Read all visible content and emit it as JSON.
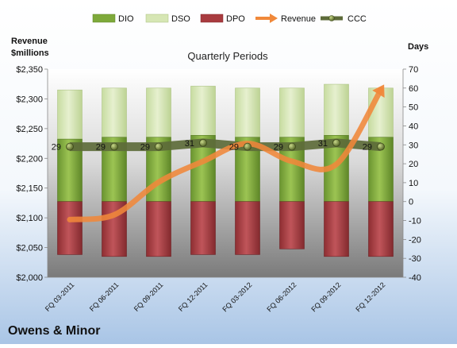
{
  "chart_data": {
    "type": "bar",
    "title": "Quarterly Periods",
    "company": "Owens & Minor",
    "left_axis_title_line1": "Revenue",
    "left_axis_title_line2": "$millions",
    "right_axis_title": "Days",
    "categories": [
      "FQ 03-2011",
      "FQ 06-2011",
      "FQ 09-2011",
      "FQ 12-2011",
      "FQ 03-2012",
      "FQ 06-2012",
      "FQ 09-2012",
      "FQ 12-2012"
    ],
    "left_axis": {
      "min": 2000,
      "max": 2350,
      "step": 50,
      "tick_labels": [
        "$2,000",
        "$2,050",
        "$2,100",
        "$2,150",
        "$2,200",
        "$2,250",
        "$2,300",
        "$2,350"
      ]
    },
    "right_axis": {
      "min": -40,
      "max": 70,
      "step": 10,
      "tick_labels": [
        "-40",
        "-30",
        "-20",
        "-10",
        "0",
        "10",
        "20",
        "30",
        "40",
        "50",
        "60",
        "70"
      ]
    },
    "series": [
      {
        "name": "DIO",
        "axis": "right",
        "kind": "stacked-bar",
        "color": "#7ea93a",
        "values": [
          33,
          34,
          34,
          35,
          34,
          34,
          35,
          34
        ]
      },
      {
        "name": "DSO",
        "axis": "right",
        "kind": "stacked-bar",
        "color": "#d6e6b4",
        "values": [
          26,
          26,
          26,
          26,
          26,
          26,
          27,
          26
        ]
      },
      {
        "name": "DPO",
        "axis": "right",
        "kind": "negative-bar",
        "color": "#a83b3f",
        "values": [
          -28,
          -29,
          -29,
          -28,
          -28,
          -25,
          -29,
          -29
        ]
      },
      {
        "name": "Revenue",
        "axis": "left",
        "kind": "line",
        "color": "#f0883a",
        "values": [
          2097,
          2105,
          2160,
          2195,
          2225,
          2195,
          2190,
          2315
        ]
      },
      {
        "name": "CCC",
        "axis": "right",
        "kind": "line",
        "color": "#5d6b3a",
        "values": [
          29,
          29,
          29,
          31,
          29,
          29,
          31,
          29
        ]
      }
    ],
    "ccc_labels": [
      "29",
      "29",
      "29",
      "31",
      "29",
      "29",
      "31",
      "29"
    ],
    "legend": [
      "DIO",
      "DSO",
      "DPO",
      "Revenue",
      "CCC"
    ],
    "legend_position": "top",
    "grid": false
  }
}
